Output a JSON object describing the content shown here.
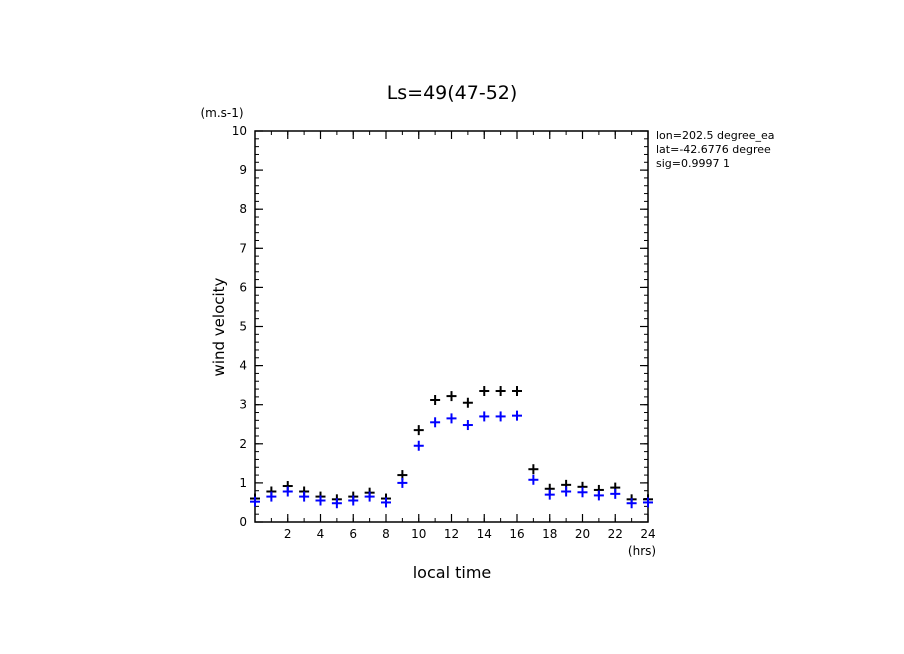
{
  "chart_data": {
    "type": "scatter",
    "title": "Ls=49(47-52)",
    "xlabel": "local time",
    "xunit": "(hrs)",
    "ylabel": "wind velocity",
    "yunit": "(m.s-1)",
    "xlim": [
      0,
      24
    ],
    "ylim": [
      0,
      10
    ],
    "xticks": [
      2,
      4,
      6,
      8,
      10,
      12,
      14,
      16,
      18,
      20,
      22,
      24
    ],
    "yticks": [
      0,
      1,
      2,
      3,
      4,
      5,
      6,
      7,
      8,
      9,
      10
    ],
    "info": [
      "lon=202.5 degree_ea",
      "lat=-42.6776 degree",
      "sig=0.9997 1"
    ],
    "marker": "+",
    "series": [
      {
        "color": "#000000",
        "x": [
          0,
          1,
          2,
          3,
          4,
          5,
          6,
          7,
          8,
          9,
          10,
          11,
          12,
          13,
          14,
          15,
          16,
          17,
          18,
          19,
          20,
          21,
          22,
          23,
          24
        ],
        "values": [
          0.6,
          0.78,
          0.92,
          0.78,
          0.65,
          0.58,
          0.65,
          0.75,
          0.6,
          1.2,
          2.35,
          3.12,
          3.22,
          3.05,
          3.35,
          3.35,
          3.35,
          1.35,
          0.85,
          0.95,
          0.9,
          0.82,
          0.88,
          0.58,
          0.58
        ]
      },
      {
        "color": "#0000ff",
        "x": [
          0,
          1,
          2,
          3,
          4,
          5,
          6,
          7,
          8,
          9,
          10,
          11,
          12,
          13,
          14,
          15,
          16,
          17,
          18,
          19,
          20,
          21,
          22,
          23,
          24
        ],
        "values": [
          0.52,
          0.65,
          0.78,
          0.65,
          0.55,
          0.48,
          0.55,
          0.65,
          0.5,
          1.0,
          1.95,
          2.55,
          2.65,
          2.48,
          2.7,
          2.7,
          2.72,
          1.08,
          0.7,
          0.78,
          0.76,
          0.68,
          0.72,
          0.48,
          0.5
        ]
      }
    ]
  }
}
